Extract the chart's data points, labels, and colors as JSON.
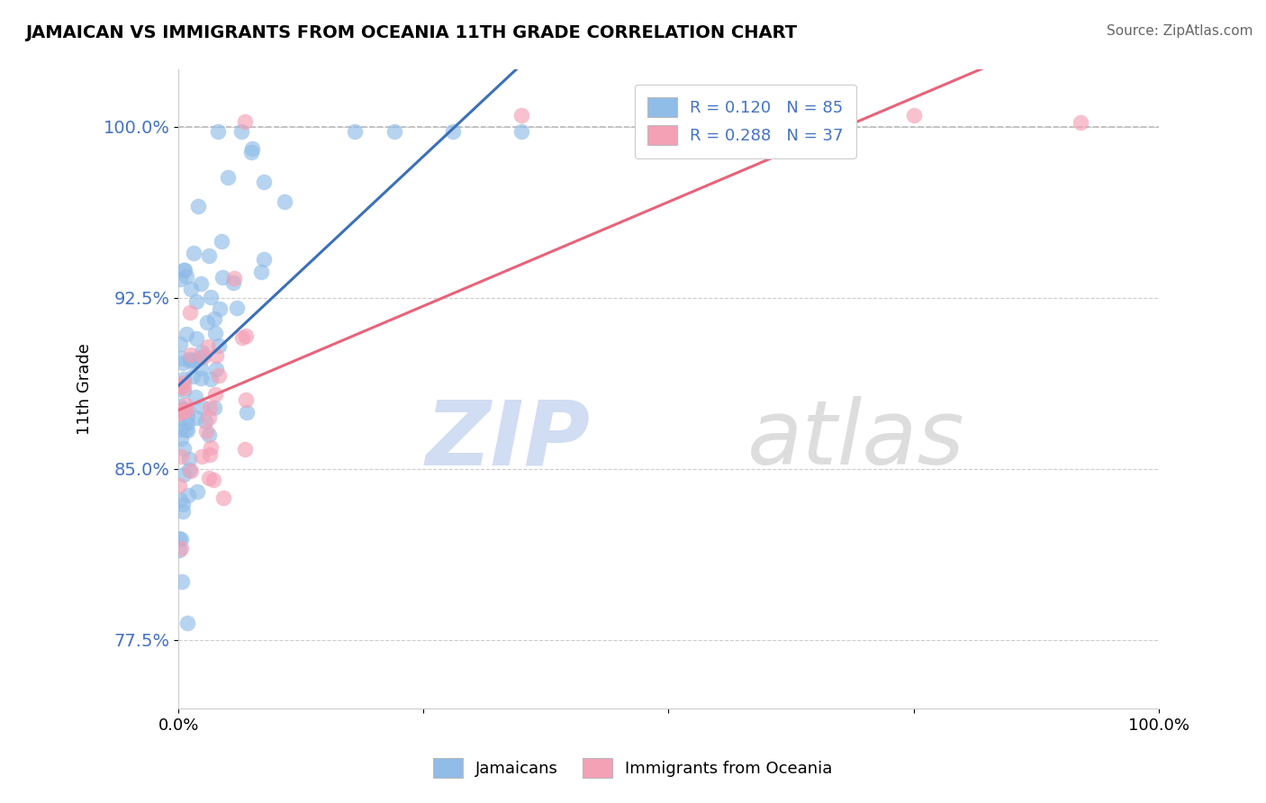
{
  "title": "JAMAICAN VS IMMIGRANTS FROM OCEANIA 11TH GRADE CORRELATION CHART",
  "source": "Source: ZipAtlas.com",
  "ylabel": "11th Grade",
  "xlim": [
    0.0,
    1.0
  ],
  "ylim": [
    0.745,
    1.025
  ],
  "yticks": [
    0.775,
    0.85,
    0.925,
    1.0
  ],
  "ytick_labels": [
    "77.5%",
    "85.0%",
    "92.5%",
    "100.0%"
  ],
  "blue_color": "#90BCE8",
  "pink_color": "#F4A0B5",
  "blue_line_color": "#3B70B8",
  "pink_line_color": "#E8637A",
  "blue_dash_color": "#7AAAD8",
  "ytick_color": "#4472C4",
  "R_blue": 0.12,
  "N_blue": 85,
  "R_pink": 0.288,
  "N_pink": 37,
  "watermark_zip": "ZIP",
  "watermark_atlas": "atlas",
  "background_color": "#FFFFFF",
  "grid_color": "#CCCCCC"
}
